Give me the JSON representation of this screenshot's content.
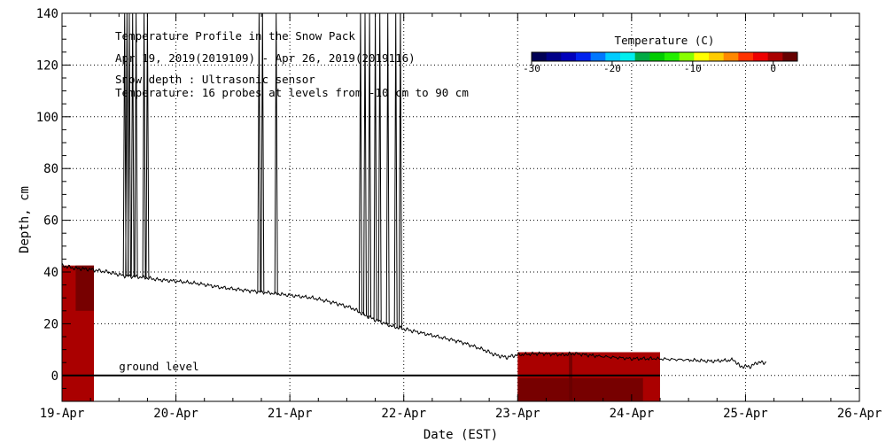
{
  "chart_data": {
    "type": "heatmap",
    "title": "Temperature Profile in the Snow Pack",
    "subtitle": "Apr 19, 2019(2019109) - Apr 26, 2019(2019116)",
    "annotations": [
      "Snow depth : Ultrasonic sensor",
      "Temperature: 16 probes at levels from -10 cm to 90 cm"
    ],
    "ground_label": "ground level",
    "xlabel": "Date (EST)",
    "ylabel": "Depth, cm",
    "x_start_day": 19,
    "x_end_day": 26,
    "ylim": [
      -10,
      140
    ],
    "x_ticks": [
      "19-Apr",
      "20-Apr",
      "21-Apr",
      "22-Apr",
      "23-Apr",
      "24-Apr",
      "25-Apr",
      "26-Apr"
    ],
    "y_ticks": [
      "0",
      "20",
      "40",
      "60",
      "80",
      "100",
      "120",
      "140"
    ],
    "grid": true,
    "colorbar": {
      "title": "Temperature (C)",
      "range": [
        -30,
        3
      ],
      "ticks": [
        "-30",
        "-20",
        "-10",
        "0"
      ],
      "colors": [
        "#000055",
        "#000088",
        "#0000bb",
        "#0022ee",
        "#0077ff",
        "#00ccff",
        "#00eeee",
        "#00aa44",
        "#00cc00",
        "#22ee00",
        "#88ff00",
        "#ffff00",
        "#ffcc00",
        "#ff8800",
        "#ff3300",
        "#ee0000",
        "#aa0000",
        "#660000"
      ]
    },
    "snow_depth": [
      [
        19.0,
        42.5
      ],
      [
        19.1,
        41.5
      ],
      [
        19.25,
        41.0
      ],
      [
        19.4,
        40.0
      ],
      [
        19.55,
        38.5
      ],
      [
        19.7,
        38.0
      ],
      [
        19.85,
        37.0
      ],
      [
        20.0,
        36.5
      ],
      [
        20.2,
        35.5
      ],
      [
        20.4,
        34.0
      ],
      [
        20.6,
        33.0
      ],
      [
        20.8,
        32.0
      ],
      [
        21.0,
        31.0
      ],
      [
        21.2,
        30.0
      ],
      [
        21.4,
        28.0
      ],
      [
        21.55,
        26.0
      ],
      [
        21.65,
        23.5
      ],
      [
        21.75,
        21.5
      ],
      [
        21.9,
        19.0
      ],
      [
        22.0,
        18.0
      ],
      [
        22.1,
        17.0
      ],
      [
        22.3,
        15.0
      ],
      [
        22.5,
        13.0
      ],
      [
        22.7,
        10.0
      ],
      [
        22.8,
        8.0
      ],
      [
        22.9,
        7.0
      ],
      [
        23.0,
        8.0
      ],
      [
        23.2,
        8.5
      ],
      [
        23.4,
        8.0
      ],
      [
        23.5,
        8.5
      ],
      [
        23.7,
        7.5
      ],
      [
        24.0,
        6.5
      ],
      [
        24.2,
        6.5
      ],
      [
        24.5,
        6.0
      ],
      [
        24.7,
        5.5
      ],
      [
        24.9,
        6.0
      ],
      [
        24.95,
        3.5
      ],
      [
        25.05,
        3.5
      ],
      [
        25.1,
        5.0
      ],
      [
        25.18,
        5.0
      ]
    ],
    "snow_depth_spikes": [
      [
        19.55,
        19.57,
        19.59,
        19.62,
        19.65,
        19.72,
        19.75
      ],
      [
        20.73,
        20.76,
        20.88
      ],
      [
        21.62,
        21.66,
        21.7,
        21.75,
        21.79,
        21.86,
        21.93,
        21.97
      ]
    ],
    "temperature_blocks": [
      {
        "x_start": 19.0,
        "x_end": 19.28,
        "y_bottom": -10,
        "y_top": 42.5,
        "temperature": 0.5
      },
      {
        "x_start": 23.0,
        "x_end": 24.25,
        "y_bottom": -10,
        "y_top": 9.0,
        "temperature": 0.3
      }
    ],
    "warm_patches": [
      {
        "x_start": 19.12,
        "x_end": 19.28,
        "y_bottom": 25,
        "y_top": 42.5,
        "temperature": 2.0
      },
      {
        "x_start": 23.0,
        "x_end": 24.1,
        "y_bottom": -10,
        "y_top": -1,
        "temperature": 2.5
      },
      {
        "x_start": 23.45,
        "x_end": 23.48,
        "y_bottom": -10,
        "y_top": 8.5,
        "temperature": 3.0
      }
    ]
  }
}
